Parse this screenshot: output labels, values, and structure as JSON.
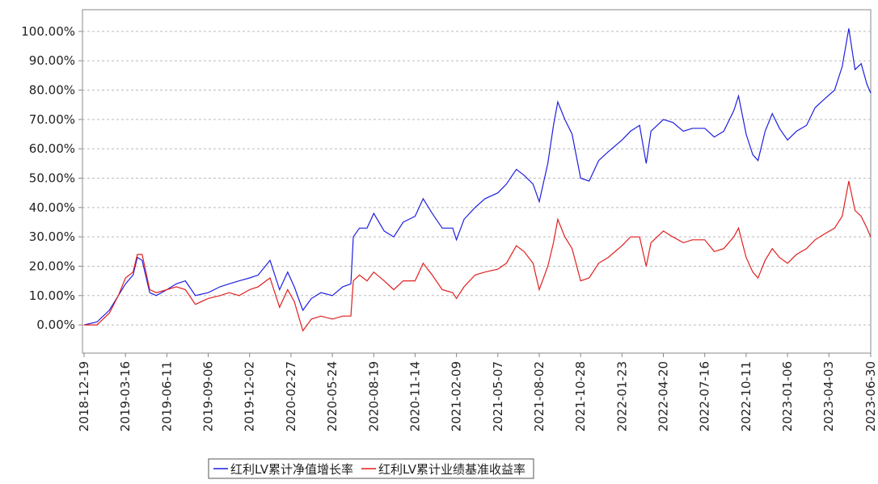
{
  "chart_data": {
    "type": "line",
    "x": [
      "2018-12-19",
      "2019-01-15",
      "2019-02-10",
      "2019-03-01",
      "2019-03-16",
      "2019-04-01",
      "2019-04-10",
      "2019-04-20",
      "2019-05-06",
      "2019-05-20",
      "2019-06-11",
      "2019-07-01",
      "2019-07-20",
      "2019-08-10",
      "2019-09-06",
      "2019-10-01",
      "2019-10-20",
      "2019-11-10",
      "2019-12-02",
      "2019-12-20",
      "2020-01-14",
      "2020-02-03",
      "2020-02-20",
      "2020-03-05",
      "2020-03-23",
      "2020-04-10",
      "2020-04-30",
      "2020-05-24",
      "2020-06-15",
      "2020-07-02",
      "2020-07-07",
      "2020-07-20",
      "2020-08-05",
      "2020-08-19",
      "2020-09-10",
      "2020-09-30",
      "2020-10-20",
      "2020-11-14",
      "2020-12-01",
      "2020-12-20",
      "2021-01-10",
      "2021-02-01",
      "2021-02-09",
      "2021-02-25",
      "2021-03-20",
      "2021-04-10",
      "2021-05-07",
      "2021-05-25",
      "2021-06-15",
      "2021-07-01",
      "2021-07-20",
      "2021-08-02",
      "2021-08-20",
      "2021-09-01",
      "2021-09-10",
      "2021-09-25",
      "2021-10-10",
      "2021-10-28",
      "2021-11-15",
      "2021-12-05",
      "2021-12-25",
      "2022-01-23",
      "2022-02-10",
      "2022-03-01",
      "2022-03-15",
      "2022-03-25",
      "2022-04-20",
      "2022-05-10",
      "2022-06-01",
      "2022-06-20",
      "2022-07-16",
      "2022-08-05",
      "2022-08-25",
      "2022-09-15",
      "2022-09-25",
      "2022-10-11",
      "2022-10-25",
      "2022-11-05",
      "2022-11-20",
      "2022-12-05",
      "2022-12-20",
      "2023-01-06",
      "2023-01-25",
      "2023-02-15",
      "2023-03-05",
      "2023-03-25",
      "2023-04-15",
      "2023-05-01",
      "2023-05-15",
      "2023-05-28",
      "2023-06-10",
      "2023-06-22",
      "2023-06-30"
    ],
    "series": [
      {
        "name": "红利LV累计净值增长率",
        "color": "#1f1fe0",
        "values": [
          0,
          1,
          5,
          10,
          14,
          17,
          23,
          22,
          11,
          10,
          12,
          14,
          15,
          10,
          11,
          13,
          14,
          15,
          16,
          17,
          22,
          12,
          18,
          13,
          5,
          9,
          11,
          10,
          13,
          14,
          30,
          33,
          33,
          38,
          32,
          30,
          35,
          37,
          43,
          38,
          33,
          33,
          29,
          36,
          40,
          43,
          45,
          48,
          53,
          51,
          48,
          42,
          55,
          68,
          76,
          70,
          65,
          50,
          49,
          56,
          59,
          63,
          66,
          68,
          55,
          66,
          70,
          69,
          66,
          67,
          67,
          64,
          66,
          73,
          78,
          65,
          58,
          56,
          66,
          72,
          67,
          63,
          66,
          68,
          74,
          77,
          80,
          88,
          101,
          87,
          89,
          82,
          79
        ]
      },
      {
        "name": "红利LV累计业绩基准收益率",
        "color": "#e01f1f",
        "values": [
          0,
          0,
          4,
          10,
          16,
          18,
          24,
          24,
          12,
          11,
          12,
          13,
          12,
          7,
          9,
          10,
          11,
          10,
          12,
          13,
          16,
          6,
          12,
          8,
          -2,
          2,
          3,
          2,
          3,
          3,
          15,
          17,
          15,
          18,
          15,
          12,
          15,
          15,
          21,
          17,
          12,
          11,
          9,
          13,
          17,
          18,
          19,
          21,
          27,
          25,
          21,
          12,
          20,
          28,
          36,
          30,
          26,
          15,
          16,
          21,
          23,
          27,
          30,
          30,
          20,
          28,
          32,
          30,
          28,
          29,
          29,
          25,
          26,
          30,
          33,
          23,
          18,
          16,
          22,
          26,
          23,
          21,
          24,
          26,
          29,
          31,
          33,
          37,
          49,
          39,
          37,
          33,
          30
        ]
      }
    ],
    "xlim": [
      "2018-12-19",
      "2023-06-30"
    ],
    "xticks": [
      "2018-12-19",
      "2019-03-16",
      "2019-06-11",
      "2019-09-06",
      "2019-12-02",
      "2020-02-27",
      "2020-05-24",
      "2020-08-19",
      "2020-11-14",
      "2021-02-09",
      "2021-05-07",
      "2021-08-02",
      "2021-10-28",
      "2022-01-23",
      "2022-04-20",
      "2022-07-16",
      "2022-10-11",
      "2023-01-06",
      "2023-04-03",
      "2023-06-30"
    ],
    "ylim": [
      -9.6,
      107.4
    ],
    "yticks": [
      {
        "value": 0,
        "label": "0.00%"
      },
      {
        "value": 10,
        "label": "10.00%"
      },
      {
        "value": 20,
        "label": "20.00%"
      },
      {
        "value": 30,
        "label": "30.00%"
      },
      {
        "value": 40,
        "label": "40.00%"
      },
      {
        "value": 50,
        "label": "50.00%"
      },
      {
        "value": 60,
        "label": "60.00%"
      },
      {
        "value": 70,
        "label": "70.00%"
      },
      {
        "value": 80,
        "label": "80.00%"
      },
      {
        "value": 90,
        "label": "90.00%"
      },
      {
        "value": 100,
        "label": "100.00%"
      }
    ],
    "grid": true
  }
}
